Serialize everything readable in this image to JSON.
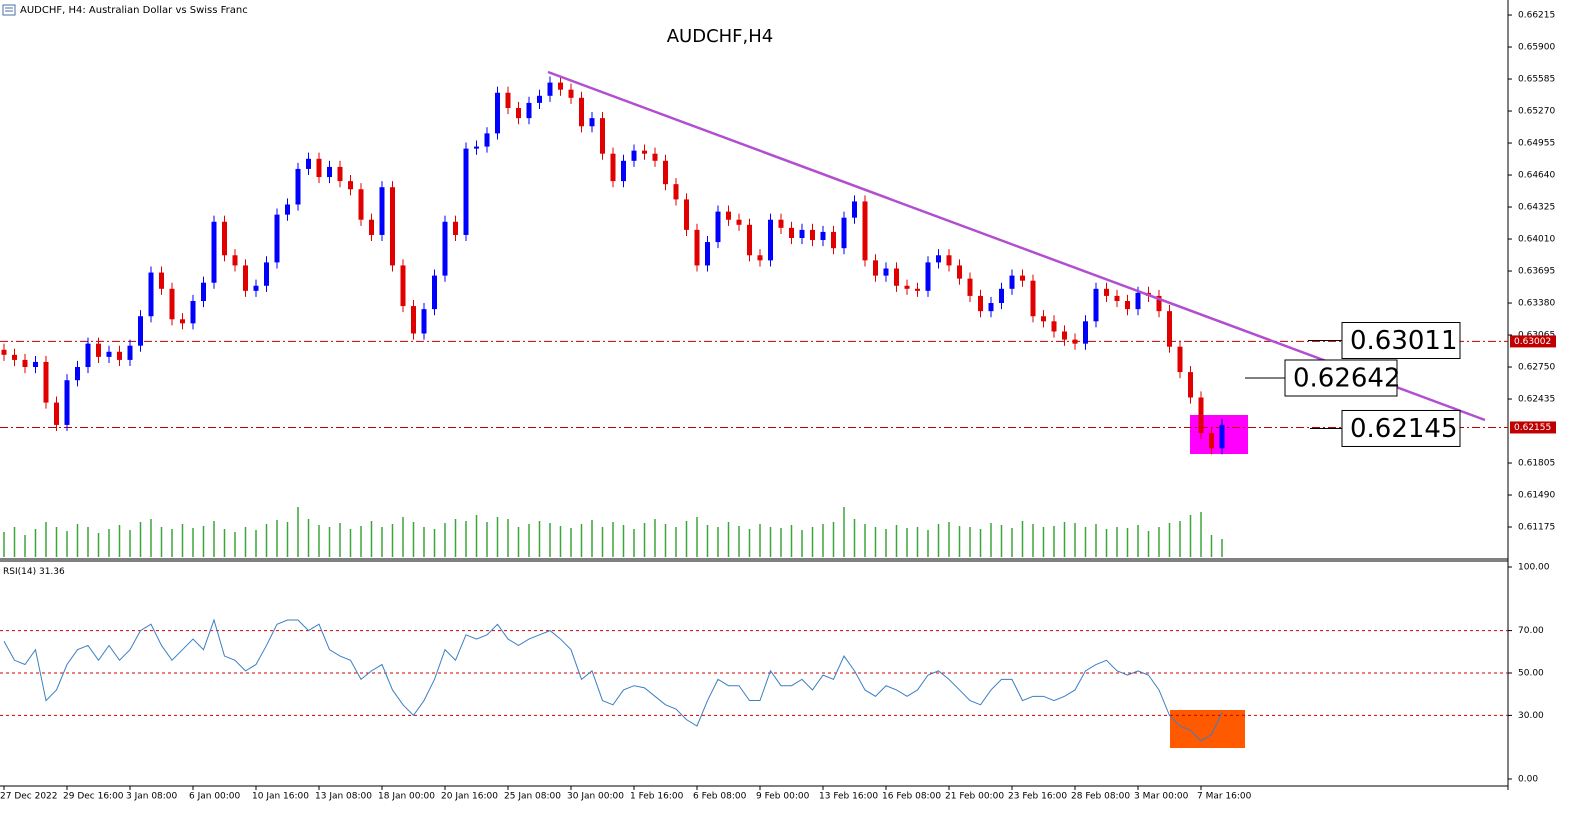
{
  "header": "AUDCHF, H4:  Australian Dollar vs Swiss Franc",
  "chart_data": {
    "type": "candlestick",
    "title": "AUDCHF,H4",
    "up_color": "#0000ff",
    "down_color": "#e00000",
    "categories": [
      "27 Dec 2022",
      null,
      null,
      null,
      null,
      null,
      "29 Dec 16:00",
      null,
      null,
      null,
      null,
      null,
      "3 Jan 08:00",
      null,
      null,
      null,
      null,
      null,
      "6 Jan 00:00",
      null,
      null,
      null,
      null,
      null,
      "10 Jan 16:00",
      null,
      null,
      null,
      null,
      null,
      "13 Jan 08:00",
      null,
      null,
      null,
      null,
      null,
      "18 Jan 00:00",
      null,
      null,
      null,
      null,
      null,
      "20 Jan 16:00",
      null,
      null,
      null,
      null,
      null,
      "25 Jan 08:00",
      null,
      null,
      null,
      null,
      null,
      "30 Jan 00:00",
      null,
      null,
      null,
      null,
      null,
      "1 Feb 16:00",
      null,
      null,
      null,
      null,
      null,
      "6 Feb 08:00",
      null,
      null,
      null,
      null,
      null,
      "9 Feb 00:00",
      null,
      null,
      null,
      null,
      null,
      "13 Feb 16:00",
      null,
      null,
      null,
      null,
      null,
      "16 Feb 08:00",
      null,
      null,
      null,
      null,
      null,
      "21 Feb 00:00",
      null,
      null,
      null,
      null,
      null,
      "23 Feb 16:00",
      null,
      null,
      null,
      null,
      null,
      "28 Feb 08:00",
      null,
      null,
      null,
      null,
      null,
      "3 Mar 00:00",
      null,
      null,
      null,
      null,
      null,
      "7 Mar 16:00",
      null,
      null
    ],
    "open": [
      0.6292,
      0.6287,
      0.6282,
      0.6275,
      0.628,
      0.624,
      0.6218,
      0.6262,
      0.6275,
      0.6298,
      0.6285,
      0.629,
      0.6282,
      0.6296,
      0.6325,
      0.6368,
      0.6352,
      0.6322,
      0.6318,
      0.634,
      0.6358,
      0.6418,
      0.6385,
      0.6375,
      0.635,
      0.6355,
      0.6378,
      0.6425,
      0.6435,
      0.647,
      0.648,
      0.6462,
      0.6472,
      0.6458,
      0.645,
      0.642,
      0.6405,
      0.6452,
      0.6375,
      0.6335,
      0.6308,
      0.6332,
      0.6365,
      0.6418,
      0.6405,
      0.649,
      0.6492,
      0.6505,
      0.6545,
      0.653,
      0.652,
      0.6535,
      0.6542,
      0.6555,
      0.6548,
      0.654,
      0.6512,
      0.652,
      0.6485,
      0.6458,
      0.6478,
      0.6488,
      0.6485,
      0.6478,
      0.6455,
      0.644,
      0.641,
      0.6375,
      0.6398,
      0.6428,
      0.642,
      0.6415,
      0.6385,
      0.638,
      0.642,
      0.6412,
      0.6402,
      0.641,
      0.64,
      0.6408,
      0.6392,
      0.6422,
      0.6438,
      0.638,
      0.6365,
      0.6372,
      0.6355,
      0.6352,
      0.635,
      0.6378,
      0.6385,
      0.6375,
      0.6362,
      0.6345,
      0.633,
      0.6338,
      0.6352,
      0.6365,
      0.636,
      0.6325,
      0.632,
      0.631,
      0.6302,
      0.6298,
      0.632,
      0.6352,
      0.6345,
      0.634,
      0.6332,
      0.6348,
      0.6345,
      0.633,
      0.6295,
      0.627,
      0.6245,
      0.621,
      0.6195
    ],
    "high": [
      0.6298,
      0.6293,
      0.6288,
      0.6286,
      0.6286,
      0.6246,
      0.6268,
      0.6281,
      0.6304,
      0.6304,
      0.6296,
      0.6296,
      0.6302,
      0.6331,
      0.6374,
      0.6374,
      0.6358,
      0.6328,
      0.6346,
      0.6364,
      0.6424,
      0.6424,
      0.6391,
      0.6381,
      0.6361,
      0.6384,
      0.6431,
      0.6441,
      0.6476,
      0.6486,
      0.6486,
      0.6478,
      0.6478,
      0.6464,
      0.6456,
      0.6426,
      0.6458,
      0.6458,
      0.6381,
      0.6341,
      0.6338,
      0.6371,
      0.6424,
      0.6424,
      0.6496,
      0.6498,
      0.6511,
      0.6551,
      0.6551,
      0.6536,
      0.6541,
      0.6548,
      0.6561,
      0.6561,
      0.6554,
      0.6546,
      0.6526,
      0.6526,
      0.6491,
      0.6484,
      0.6494,
      0.6494,
      0.6491,
      0.6484,
      0.6461,
      0.6446,
      0.6416,
      0.6404,
      0.6434,
      0.6434,
      0.6426,
      0.6421,
      0.6391,
      0.6426,
      0.6426,
      0.6418,
      0.6416,
      0.6416,
      0.6414,
      0.6414,
      0.6428,
      0.6444,
      0.6444,
      0.6386,
      0.6378,
      0.6378,
      0.6361,
      0.6358,
      0.6384,
      0.6391,
      0.6391,
      0.6381,
      0.6368,
      0.6351,
      0.6344,
      0.6358,
      0.6371,
      0.6371,
      0.6366,
      0.6331,
      0.6326,
      0.6316,
      0.6308,
      0.6326,
      0.6358,
      0.6358,
      0.6351,
      0.6346,
      0.6354,
      0.6354,
      0.6351,
      0.6336,
      0.6301,
      0.6276,
      0.6251,
      0.6216,
      0.6224
    ],
    "low": [
      0.6281,
      0.6276,
      0.6269,
      0.6269,
      0.6234,
      0.6212,
      0.6212,
      0.6256,
      0.6269,
      0.6279,
      0.6279,
      0.6276,
      0.6276,
      0.629,
      0.6319,
      0.6346,
      0.6316,
      0.6312,
      0.6312,
      0.6334,
      0.6352,
      0.6379,
      0.6369,
      0.6344,
      0.6344,
      0.6349,
      0.6372,
      0.6419,
      0.6429,
      0.6464,
      0.6456,
      0.6456,
      0.6452,
      0.6444,
      0.6414,
      0.6399,
      0.6399,
      0.6369,
      0.6329,
      0.6302,
      0.6302,
      0.6326,
      0.6359,
      0.6399,
      0.6399,
      0.6484,
      0.6486,
      0.6499,
      0.6524,
      0.6514,
      0.6514,
      0.6529,
      0.6536,
      0.6542,
      0.6534,
      0.6506,
      0.6506,
      0.6479,
      0.6452,
      0.6452,
      0.6472,
      0.6479,
      0.6472,
      0.6449,
      0.6434,
      0.6404,
      0.6369,
      0.6369,
      0.6392,
      0.6414,
      0.6409,
      0.6379,
      0.6374,
      0.6374,
      0.6406,
      0.6396,
      0.6396,
      0.6394,
      0.6394,
      0.6386,
      0.6386,
      0.6416,
      0.6374,
      0.6359,
      0.6359,
      0.6349,
      0.6346,
      0.6344,
      0.6344,
      0.6372,
      0.6369,
      0.6356,
      0.6339,
      0.6324,
      0.6324,
      0.6332,
      0.6346,
      0.6354,
      0.6319,
      0.6314,
      0.6304,
      0.6296,
      0.6292,
      0.6292,
      0.6314,
      0.6339,
      0.6334,
      0.6326,
      0.6326,
      0.6339,
      0.6324,
      0.6289,
      0.6264,
      0.6239,
      0.6204,
      0.6189,
      0.6189
    ],
    "close": [
      0.6287,
      0.6282,
      0.6275,
      0.628,
      0.624,
      0.6218,
      0.6262,
      0.6275,
      0.6298,
      0.6285,
      0.629,
      0.6282,
      0.6296,
      0.6325,
      0.6368,
      0.6352,
      0.6322,
      0.6318,
      0.634,
      0.6358,
      0.6418,
      0.6385,
      0.6375,
      0.635,
      0.6355,
      0.6378,
      0.6425,
      0.6435,
      0.647,
      0.648,
      0.6462,
      0.6472,
      0.6458,
      0.645,
      0.642,
      0.6405,
      0.6452,
      0.6375,
      0.6335,
      0.6308,
      0.6332,
      0.6365,
      0.6418,
      0.6405,
      0.649,
      0.6492,
      0.6505,
      0.6545,
      0.653,
      0.652,
      0.6535,
      0.6542,
      0.6555,
      0.6548,
      0.654,
      0.6512,
      0.652,
      0.6485,
      0.6458,
      0.6478,
      0.6488,
      0.6485,
      0.6478,
      0.6455,
      0.644,
      0.641,
      0.6375,
      0.6398,
      0.6428,
      0.642,
      0.6415,
      0.6385,
      0.638,
      0.642,
      0.6412,
      0.6402,
      0.641,
      0.64,
      0.6408,
      0.6392,
      0.6422,
      0.6438,
      0.638,
      0.6365,
      0.6372,
      0.6355,
      0.6352,
      0.635,
      0.6378,
      0.6385,
      0.6375,
      0.6362,
      0.6345,
      0.633,
      0.6338,
      0.6352,
      0.6365,
      0.636,
      0.6325,
      0.632,
      0.631,
      0.6302,
      0.6298,
      0.632,
      0.6352,
      0.6345,
      0.634,
      0.6332,
      0.6348,
      0.6345,
      0.633,
      0.6295,
      0.627,
      0.6245,
      0.621,
      0.6195,
      0.6218
    ],
    "ylim": [
      0.6087,
      0.66363
    ],
    "yticks": [
      0.66215,
      {
        "value": 0.659,
        "label": "0.65900"
      },
      0.65585,
      {
        "value": 0.6527,
        "label": "0.65270"
      },
      0.64955,
      {
        "value": 0.6464,
        "label": "0.64640"
      },
      0.64325,
      {
        "value": 0.6401,
        "label": "0.64010"
      },
      0.63695,
      {
        "value": 0.6338,
        "label": "0.63380"
      },
      0.63065,
      {
        "value": 0.6275,
        "label": "0.62750"
      },
      0.62435,
      0.61805,
      {
        "value": 0.6149,
        "label": "0.61490"
      },
      0.61175
    ],
    "hlines": [
      0.63002,
      0.62155
    ],
    "hline_color": "#c00000",
    "annotations": [
      0.63011,
      0.62642,
      0.62145
    ],
    "volume": {
      "color": "#3aa63a",
      "vlim": [
        0,
        60
      ],
      "values": [
        25,
        30,
        22,
        28,
        35,
        30,
        26,
        33,
        30,
        24,
        28,
        32,
        27,
        35,
        38,
        30,
        28,
        33,
        29,
        31,
        36,
        28,
        25,
        30,
        27,
        33,
        37,
        35,
        50,
        38,
        32,
        30,
        34,
        28,
        31,
        36,
        30,
        33,
        40,
        35,
        30,
        28,
        34,
        38,
        36,
        42,
        35,
        40,
        38,
        30,
        33,
        36,
        34,
        31,
        29,
        33,
        37,
        30,
        35,
        32,
        28,
        34,
        38,
        33,
        30,
        36,
        40,
        32,
        30,
        35,
        31,
        28,
        33,
        30,
        29,
        32,
        27,
        30,
        33,
        35,
        50,
        38,
        33,
        30,
        28,
        32,
        29,
        30,
        27,
        33,
        35,
        31,
        30,
        28,
        34,
        32,
        29,
        36,
        33,
        30,
        31,
        35,
        34,
        30,
        33,
        28,
        30,
        29,
        32,
        26,
        30,
        34,
        36,
        42,
        45,
        22,
        18
      ]
    },
    "rsi": {
      "name": "RSI(14)",
      "color": "#3b7fc4",
      "level_color": "#d00000",
      "ylim": [
        0,
        100
      ],
      "yticks": [
        {
          "value": 100,
          "label": "100.00"
        },
        {
          "value": 70,
          "label": "70.00"
        },
        {
          "value": 50,
          "label": "50.00"
        },
        {
          "value": 30,
          "label": "30.00"
        },
        {
          "value": 0,
          "label": "0.00"
        }
      ],
      "levels": [
        70,
        50,
        30
      ],
      "values": [
        65,
        56,
        54,
        61,
        37,
        42,
        54,
        61,
        63,
        56,
        63,
        56,
        61,
        70,
        73,
        63,
        56,
        61,
        66,
        61,
        75,
        58,
        56,
        51,
        54,
        63,
        73,
        75,
        75,
        70,
        73,
        61,
        58,
        56,
        47,
        51,
        54,
        42,
        35,
        30,
        37,
        47,
        61,
        56,
        68,
        66,
        68,
        73,
        66,
        63,
        66,
        68,
        70,
        66,
        61,
        47,
        51,
        37,
        35,
        42,
        44,
        43,
        39,
        35,
        33,
        28,
        25,
        37,
        47,
        44,
        44,
        37,
        37,
        51,
        44,
        44,
        47,
        42,
        49,
        47,
        58,
        51,
        42,
        39,
        44,
        42,
        39,
        42,
        49,
        51,
        47,
        42,
        37,
        35,
        42,
        47,
        47,
        37,
        39,
        39,
        37,
        39,
        42,
        51,
        54,
        56,
        51,
        49,
        51,
        49,
        42,
        30,
        25,
        23,
        18,
        21,
        31.36
      ]
    }
  }
}
